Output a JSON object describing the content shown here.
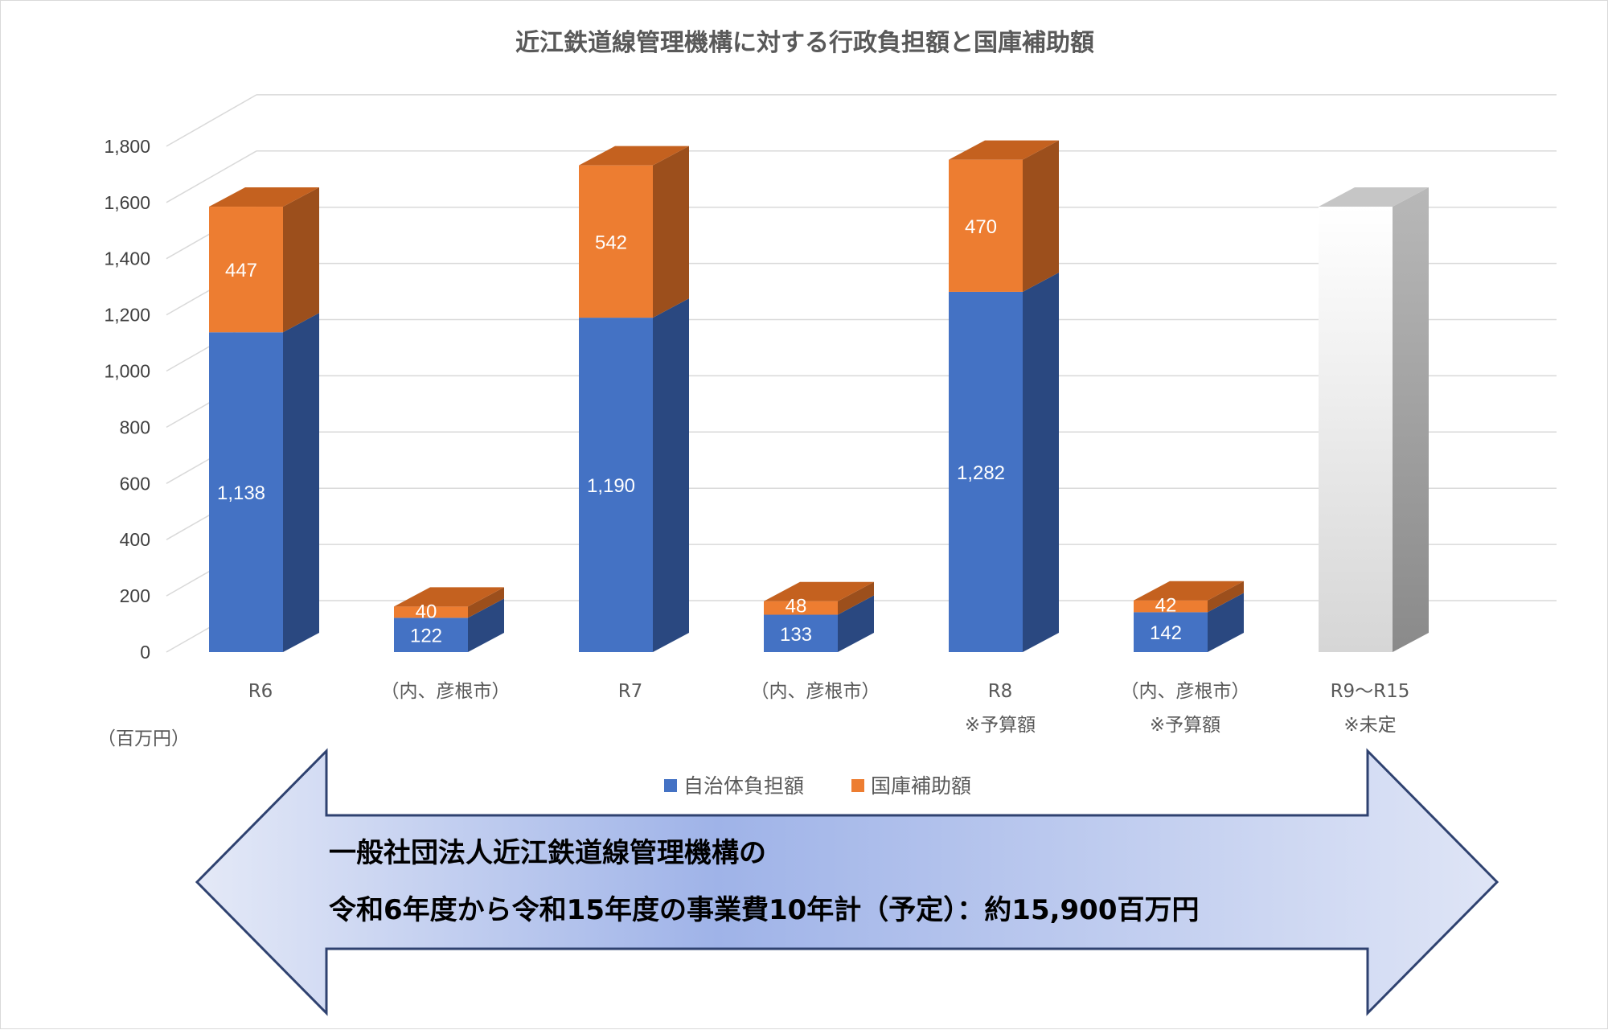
{
  "chart_data": {
    "type": "bar",
    "stacked": true,
    "three_d": true,
    "title": "近江鉄道線管理機構に対する行政負担額と国庫補助額",
    "unit_label": "（百万円）",
    "ylim": [
      0,
      1800
    ],
    "yticks": [
      "0",
      "200",
      "400",
      "600",
      "800",
      "1,000",
      "1,200",
      "1,400",
      "1,600",
      "1,800"
    ],
    "grid": true,
    "legend_position": "bottom",
    "categories": [
      {
        "line1": "R6",
        "line2": ""
      },
      {
        "line1": "（内、彦根市）",
        "line2": ""
      },
      {
        "line1": "R7",
        "line2": ""
      },
      {
        "line1": "（内、彦根市）",
        "line2": ""
      },
      {
        "line1": "R8",
        "line2": "※予算額"
      },
      {
        "line1": "（内、彦根市）",
        "line2": "※予算額"
      },
      {
        "line1": "R9～R15",
        "line2": "※未定"
      }
    ],
    "series": [
      {
        "name": "自治体負担額",
        "color": "#4472c4",
        "side_color": "#2a4880",
        "top_color": "#3a5fa6",
        "values": [
          1138,
          122,
          1190,
          133,
          1282,
          142,
          null
        ],
        "labels": [
          "1,138",
          "122",
          "1,190",
          "133",
          "1,282",
          "142",
          ""
        ]
      },
      {
        "name": "国庫補助額",
        "color": "#ed7d31",
        "side_color": "#9c4f1c",
        "top_color": "#c4611f",
        "values": [
          447,
          40,
          542,
          48,
          470,
          42,
          null
        ],
        "labels": [
          "447",
          "40",
          "542",
          "48",
          "470",
          "42",
          ""
        ]
      }
    ],
    "undetermined_bar": {
      "category_index": 6,
      "value": 1585,
      "color": "#d9d9d9"
    }
  },
  "arrow_banner": {
    "line1": "一般社団法人近江鉄道線管理機構の",
    "line2": "令和6年度から令和15年度の事業費10年計（予定）：約15,900百万円"
  }
}
